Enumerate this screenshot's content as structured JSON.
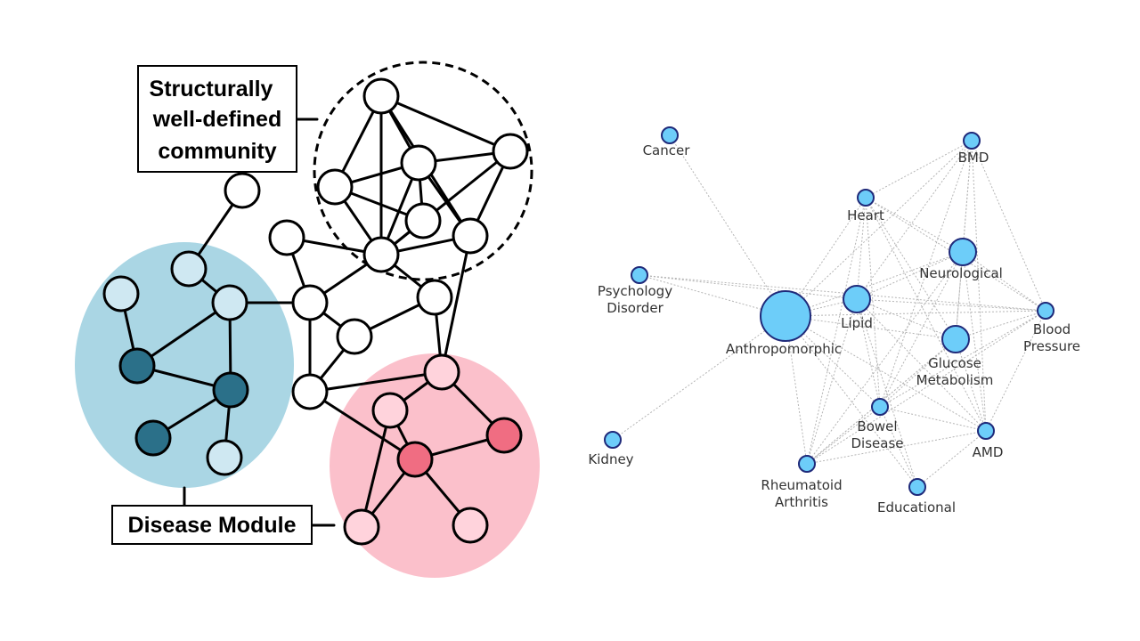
{
  "colors": {
    "background": "#ffffff",
    "blue_module_fill": "#aad6e4",
    "blue_node_light": "#cfe8f2",
    "blue_node_dark": "#2b7089",
    "pink_module_fill": "#fbc0cb",
    "pink_node_light": "#ffd3dc",
    "pink_node_dark": "#f06d82",
    "network_node_fill": "#6dcdf9",
    "network_node_stroke": "#1f2a7a",
    "network_edge": "#b5b5b5"
  },
  "schematic": {
    "labels": {
      "community": [
        "Structurally",
        "well-defined",
        "community"
      ],
      "disease_module": "Disease Module"
    }
  },
  "network": {
    "nodes": [
      {
        "id": "cancer",
        "label": [
          "Cancer"
        ],
        "size": "small"
      },
      {
        "id": "bmd",
        "label": [
          "BMD"
        ],
        "size": "small"
      },
      {
        "id": "heart",
        "label": [
          "Heart"
        ],
        "size": "small"
      },
      {
        "id": "neurological",
        "label": [
          "Neurological"
        ],
        "size": "medium"
      },
      {
        "id": "psychology",
        "label": [
          "Psychology",
          "Disorder"
        ],
        "size": "small"
      },
      {
        "id": "lipid",
        "label": [
          "Lipid"
        ],
        "size": "medium"
      },
      {
        "id": "blood_pressure",
        "label": [
          "Blood",
          "Pressure"
        ],
        "size": "small"
      },
      {
        "id": "anthropomorphic",
        "label": [
          "Anthropomorphic"
        ],
        "size": "large"
      },
      {
        "id": "glucose",
        "label": [
          "Glucose",
          "Metabolism"
        ],
        "size": "medium"
      },
      {
        "id": "bowel",
        "label": [
          "Bowel",
          "Disease"
        ],
        "size": "small"
      },
      {
        "id": "amd",
        "label": [
          "AMD"
        ],
        "size": "small"
      },
      {
        "id": "kidney",
        "label": [
          "Kidney"
        ],
        "size": "small"
      },
      {
        "id": "rheumatoid",
        "label": [
          "Rheumatoid",
          "Arthritis"
        ],
        "size": "small"
      },
      {
        "id": "educational",
        "label": [
          "Educational"
        ],
        "size": "small"
      }
    ],
    "edges": [
      [
        "cancer",
        "anthropomorphic"
      ],
      [
        "psychology",
        "anthropomorphic"
      ],
      [
        "psychology",
        "lipid"
      ],
      [
        "psychology",
        "blood_pressure"
      ],
      [
        "kidney",
        "anthropomorphic"
      ],
      [
        "anthropomorphic",
        "lipid"
      ],
      [
        "anthropomorphic",
        "neurological"
      ],
      [
        "anthropomorphic",
        "glucose"
      ],
      [
        "anthropomorphic",
        "blood_pressure"
      ],
      [
        "anthropomorphic",
        "bowel"
      ],
      [
        "anthropomorphic",
        "rheumatoid"
      ],
      [
        "anthropomorphic",
        "heart"
      ],
      [
        "anthropomorphic",
        "bmd"
      ],
      [
        "anthropomorphic",
        "amd"
      ],
      [
        "anthropomorphic",
        "educational"
      ],
      [
        "bmd",
        "heart"
      ],
      [
        "bmd",
        "neurological"
      ],
      [
        "bmd",
        "lipid"
      ],
      [
        "bmd",
        "blood_pressure"
      ],
      [
        "bmd",
        "glucose"
      ],
      [
        "bmd",
        "amd"
      ],
      [
        "bmd",
        "bowel"
      ],
      [
        "heart",
        "neurological"
      ],
      [
        "heart",
        "lipid"
      ],
      [
        "heart",
        "glucose"
      ],
      [
        "heart",
        "blood_pressure"
      ],
      [
        "heart",
        "amd"
      ],
      [
        "heart",
        "bowel"
      ],
      [
        "heart",
        "rheumatoid"
      ],
      [
        "neurological",
        "lipid"
      ],
      [
        "neurological",
        "glucose"
      ],
      [
        "neurological",
        "blood_pressure"
      ],
      [
        "neurological",
        "bowel"
      ],
      [
        "neurological",
        "rheumatoid"
      ],
      [
        "neurological",
        "amd"
      ],
      [
        "lipid",
        "glucose"
      ],
      [
        "lipid",
        "blood_pressure"
      ],
      [
        "lipid",
        "bowel"
      ],
      [
        "lipid",
        "amd"
      ],
      [
        "lipid",
        "rheumatoid"
      ],
      [
        "lipid",
        "educational"
      ],
      [
        "glucose",
        "blood_pressure"
      ],
      [
        "glucose",
        "amd"
      ],
      [
        "glucose",
        "bowel"
      ],
      [
        "glucose",
        "rheumatoid"
      ],
      [
        "blood_pressure",
        "amd"
      ],
      [
        "blood_pressure",
        "bowel"
      ],
      [
        "blood_pressure",
        "rheumatoid"
      ],
      [
        "bowel",
        "amd"
      ],
      [
        "bowel",
        "rheumatoid"
      ],
      [
        "bowel",
        "educational"
      ],
      [
        "amd",
        "rheumatoid"
      ],
      [
        "amd",
        "educational"
      ],
      [
        "rheumatoid",
        "glucose"
      ]
    ]
  }
}
